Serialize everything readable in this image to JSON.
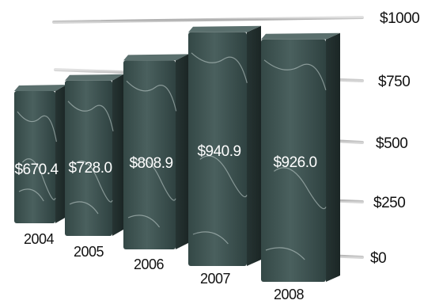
{
  "chart_data": {
    "type": "bar",
    "title": "",
    "xlabel": "",
    "ylabel": "",
    "categories": [
      "2004",
      "2005",
      "2006",
      "2007",
      "2008"
    ],
    "values": [
      670.4,
      728.0,
      808.9,
      940.9,
      926.0
    ],
    "value_labels": [
      "$670.4",
      "$728.0",
      "$808.9",
      "$940.9",
      "$926.0"
    ],
    "yticks": [
      0,
      250,
      500,
      750,
      1000
    ],
    "ytick_labels": [
      "$0",
      "$250",
      "$500",
      "$750",
      "$1000"
    ],
    "ylim": [
      0,
      1000
    ],
    "grid": true,
    "legend": "none",
    "colors": {
      "bar_front": "#3e5452",
      "bar_side": "#2a3a39",
      "bar_top": "#5a6f6d",
      "vein": "#c9d6d4",
      "grid": "#b8b8b8",
      "text": "#111111",
      "data_text": "#ffffff"
    }
  }
}
